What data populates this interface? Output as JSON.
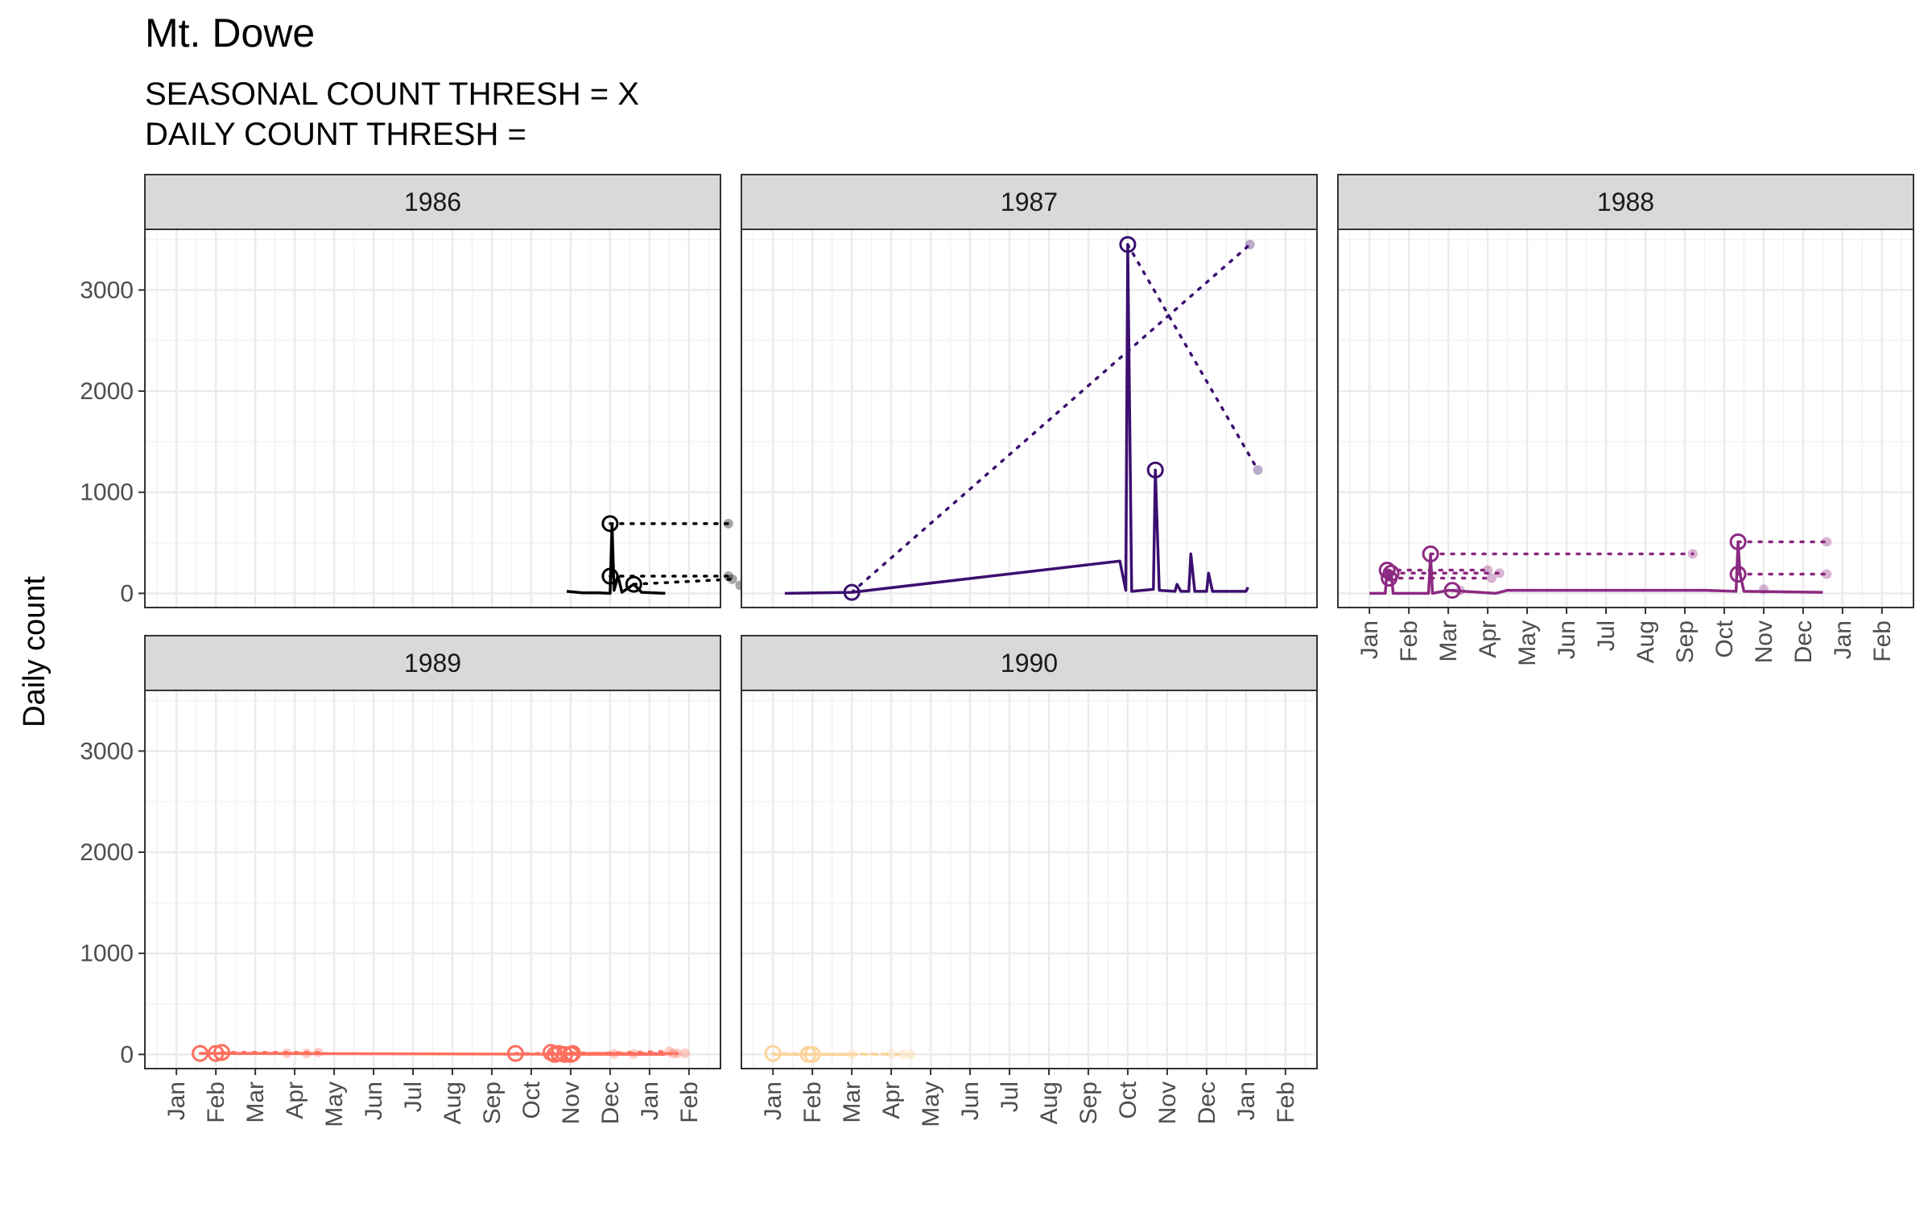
{
  "chart_data": {
    "type": "line",
    "title": "Mt. Dowe",
    "subtitle_lines": [
      "SEASONAL COUNT THRESH = X",
      "DAILY COUNT THRESH ="
    ],
    "ylabel": "Daily count",
    "xlabel": "",
    "ylim": [
      -140,
      3600
    ],
    "y_ticks": [
      0,
      1000,
      2000,
      3000
    ],
    "x_tick_labels": [
      "Jan",
      "Feb",
      "Mar",
      "Apr",
      "May",
      "Jun",
      "Jul",
      "Aug",
      "Sep",
      "Oct",
      "Nov",
      "Dec",
      "Jan",
      "Feb"
    ],
    "xlim_months": [
      -0.8,
      13.8
    ],
    "grid": true,
    "facets": [
      {
        "label": "1986",
        "color": "#000004",
        "line": [
          [
            9.9,
            20
          ],
          [
            10.3,
            5
          ],
          [
            10.7,
            5
          ],
          [
            11.0,
            0
          ],
          [
            11.05,
            690
          ],
          [
            11.1,
            30
          ],
          [
            11.2,
            170
          ],
          [
            11.3,
            10
          ],
          [
            11.6,
            90
          ],
          [
            11.8,
            10
          ],
          [
            12.4,
            0
          ]
        ],
        "circles": [
          [
            11.0,
            690
          ],
          [
            11.0,
            170
          ],
          [
            11.6,
            90
          ]
        ],
        "dots": [
          [
            14.0,
            690
          ],
          [
            14.0,
            170
          ],
          [
            14.1,
            140
          ],
          [
            14.3,
            80
          ]
        ]
      },
      {
        "label": "1987",
        "color": "#3b0f70",
        "line": [
          [
            0.3,
            0
          ],
          [
            2.0,
            10
          ],
          [
            8.8,
            320
          ],
          [
            8.95,
            30
          ],
          [
            9.0,
            3450
          ],
          [
            9.1,
            20
          ],
          [
            9.65,
            40
          ],
          [
            9.7,
            1220
          ],
          [
            9.8,
            30
          ],
          [
            10.2,
            20
          ],
          [
            10.25,
            90
          ],
          [
            10.35,
            20
          ],
          [
            10.55,
            20
          ],
          [
            10.6,
            390
          ],
          [
            10.7,
            20
          ],
          [
            11.0,
            20
          ],
          [
            11.05,
            200
          ],
          [
            11.15,
            20
          ],
          [
            12.0,
            20
          ],
          [
            12.05,
            60
          ]
        ],
        "circles": [
          [
            2.0,
            10
          ],
          [
            9.0,
            3450
          ],
          [
            9.7,
            1220
          ]
        ],
        "dots": [
          [
            12.1,
            3450
          ],
          [
            12.3,
            1220
          ]
        ]
      },
      {
        "label": "1988",
        "color": "#8c2981",
        "line": [
          [
            0.0,
            0
          ],
          [
            0.4,
            0
          ],
          [
            0.45,
            230
          ],
          [
            0.5,
            150
          ],
          [
            0.55,
            220
          ],
          [
            0.6,
            0
          ],
          [
            1.5,
            0
          ],
          [
            1.55,
            380
          ],
          [
            1.6,
            0
          ],
          [
            2.0,
            30
          ],
          [
            3.2,
            0
          ],
          [
            3.5,
            30
          ],
          [
            8.5,
            30
          ],
          [
            9.3,
            20
          ],
          [
            9.35,
            510
          ],
          [
            9.4,
            190
          ],
          [
            9.5,
            20
          ],
          [
            11.5,
            10
          ]
        ],
        "circles": [
          [
            0.45,
            230
          ],
          [
            0.55,
            200
          ],
          [
            0.5,
            150
          ],
          [
            1.55,
            390
          ],
          [
            2.1,
            30
          ],
          [
            9.35,
            510
          ],
          [
            9.35,
            190
          ]
        ],
        "dots": [
          [
            3.0,
            230
          ],
          [
            3.3,
            200
          ],
          [
            3.1,
            150
          ],
          [
            8.2,
            390
          ],
          [
            2.3,
            30
          ],
          [
            11.6,
            510
          ],
          [
            11.6,
            190
          ],
          [
            10.0,
            40
          ]
        ]
      },
      {
        "label": "1989",
        "color": "#fe6f5e",
        "line": [
          [
            0.6,
            10
          ],
          [
            12.4,
            0
          ]
        ],
        "circles": [
          [
            0.6,
            10
          ],
          [
            1.0,
            10
          ],
          [
            1.15,
            20
          ],
          [
            8.6,
            10
          ],
          [
            9.5,
            20
          ],
          [
            9.6,
            0
          ],
          [
            9.7,
            10
          ],
          [
            9.85,
            0
          ],
          [
            10.0,
            0
          ],
          [
            10.05,
            10
          ]
        ],
        "dots": [
          [
            2.8,
            10
          ],
          [
            3.3,
            10
          ],
          [
            3.6,
            20
          ],
          [
            11.1,
            5
          ],
          [
            11.6,
            5
          ],
          [
            12.5,
            30
          ],
          [
            12.6,
            10
          ],
          [
            12.7,
            10
          ],
          [
            12.9,
            10
          ]
        ]
      },
      {
        "label": "1990",
        "color": "#fcd39b",
        "line": [
          [
            0.0,
            0
          ],
          [
            1.8,
            0
          ]
        ],
        "circles": [
          [
            0.0,
            10
          ],
          [
            0.9,
            0
          ],
          [
            1.0,
            0
          ]
        ],
        "dots": [
          [
            2.0,
            0
          ],
          [
            3.0,
            5
          ],
          [
            3.3,
            0
          ],
          [
            3.5,
            0
          ]
        ]
      }
    ]
  }
}
